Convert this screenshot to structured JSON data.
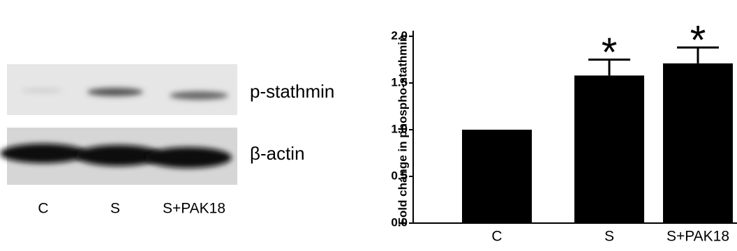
{
  "blot": {
    "bands": [
      "p-stathmin",
      "β-actin"
    ],
    "lanes": [
      "C",
      "S",
      "S+PAK18"
    ]
  },
  "chart_data": {
    "type": "bar",
    "ylabel": "Fold change in phospho-stathmin",
    "categories": [
      "C",
      "S",
      "S+PAK18"
    ],
    "values": [
      1.0,
      1.58,
      1.71
    ],
    "errors": [
      0,
      0.17,
      0.17
    ],
    "significance": [
      null,
      "*",
      "*"
    ],
    "color": "#000000",
    "ylim": [
      0,
      2.06
    ],
    "yticks": [
      {
        "value": 0,
        "label": "0.0"
      },
      0.5,
      {
        "value": 1,
        "label": "1.0"
      },
      1.5,
      {
        "value": 2,
        "label": "2.0"
      }
    ]
  }
}
